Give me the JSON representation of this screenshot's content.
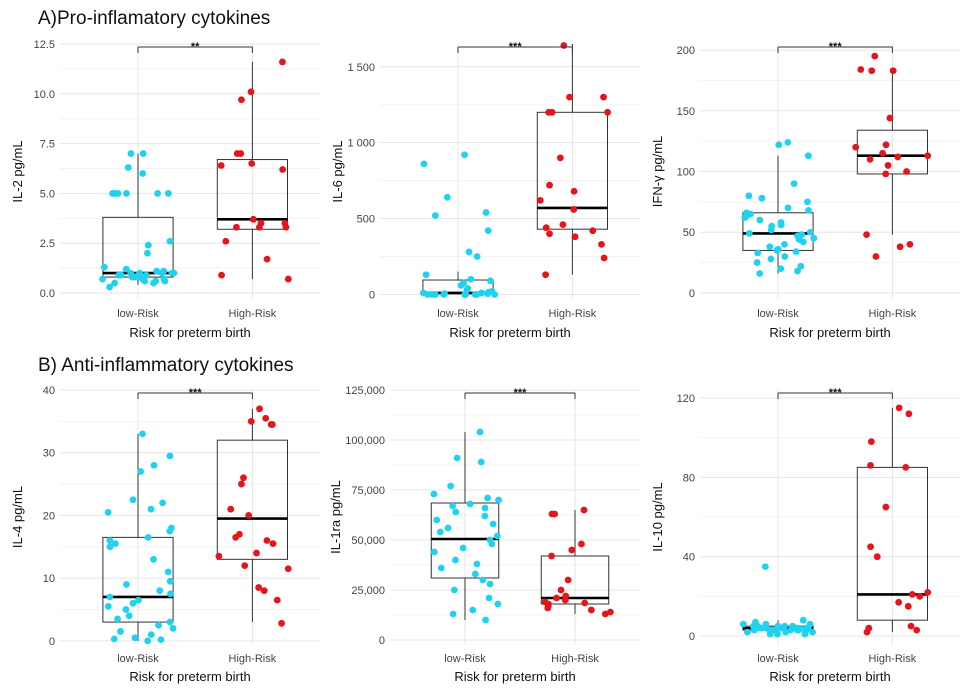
{
  "sections": {
    "a": "A)Pro-inflamatory cytokines",
    "b": "B) Anti-inflammatory cytokines"
  },
  "colors": {
    "low": "#1fd3f0",
    "high": "#e8141c",
    "grid": "#e6e6e6"
  },
  "chart_data": [
    {
      "type": "box",
      "ylabel": "IL-2 pg/mL",
      "xlabel": "Risk for preterm birth",
      "categories": [
        "low-Risk",
        "High-Risk"
      ],
      "ylim": [
        -0.3,
        12.5
      ],
      "yticks": [
        0,
        2.5,
        5,
        7.5,
        10,
        12.5
      ],
      "ytick_labels": [
        "0.0",
        "2.5",
        "5.0",
        "7.5",
        "10.0",
        "12.5"
      ],
      "significance": "**",
      "boxes": [
        {
          "q1": 0.8,
          "median": 1.0,
          "q3": 3.8,
          "whisker_low": 0.4,
          "whisker_high": 7.0
        },
        {
          "q1": 3.2,
          "median": 3.7,
          "q3": 6.7,
          "whisker_low": 0.7,
          "whisker_high": 11.6
        }
      ],
      "points": [
        [
          0.5,
          0.6,
          0.7,
          0.8,
          0.9,
          1.0,
          1.1,
          0.9,
          1.0,
          0.8,
          0.7,
          0.6,
          0.9,
          1.0,
          1.1,
          1.2,
          0.8,
          0.9,
          1.0,
          0.5,
          0.6,
          0.7,
          1.3,
          2.0,
          2.6,
          5.0,
          5.0,
          5.0,
          5.0,
          5.0,
          5.0,
          6.0,
          6.3,
          7.0,
          7.0,
          0.3,
          2.4,
          1.0,
          0.9
        ],
        [
          11.6,
          10.1,
          9.7,
          6.5,
          6.4,
          6.2,
          7.0,
          7.0,
          3.5,
          3.3,
          3.7,
          3.3,
          3.5,
          3.3,
          2.6,
          1.7,
          0.9,
          0.7
        ]
      ]
    },
    {
      "type": "box",
      "ylabel": "IL-6 pg/mL",
      "xlabel": "Risk for preterm birth",
      "categories": [
        "low-Risk",
        "High-Risk"
      ],
      "ylim": [
        -30,
        1650
      ],
      "yticks": [
        0,
        500,
        1000,
        1500
      ],
      "ytick_labels": [
        "0",
        "500",
        "1 000",
        "1 500"
      ],
      "significance": "***",
      "boxes": [
        {
          "q1": 5,
          "median": 10,
          "q3": 95,
          "whisker_low": 0,
          "whisker_high": 150
        },
        {
          "q1": 430,
          "median": 570,
          "q3": 1200,
          "whisker_low": 130,
          "whisker_high": 1650
        }
      ],
      "points": [
        [
          920,
          860,
          640,
          540,
          520,
          420,
          280,
          250,
          130,
          100,
          90,
          75,
          60,
          40,
          30,
          20,
          15,
          10,
          10,
          5,
          5,
          0,
          0,
          0,
          0,
          0,
          0,
          0,
          0,
          0,
          0
        ],
        [
          1640,
          1300,
          1300,
          1200,
          1200,
          1200,
          900,
          720,
          680,
          620,
          560,
          460,
          440,
          420,
          400,
          380,
          330,
          240,
          130
        ]
      ]
    },
    {
      "type": "box",
      "ylabel": "IFN-γ pg/mL",
      "xlabel": "Risk for preterm birth",
      "categories": [
        "low-Risk",
        "High-Risk"
      ],
      "ylim": [
        -5,
        205
      ],
      "yticks": [
        0,
        50,
        100,
        150,
        200
      ],
      "ytick_labels": [
        "0",
        "50",
        "100",
        "150",
        "200"
      ],
      "significance": "***",
      "boxes": [
        {
          "q1": 35,
          "median": 49,
          "q3": 66,
          "whisker_low": 16,
          "whisker_high": 113
        },
        {
          "q1": 98,
          "median": 113,
          "q3": 134,
          "whisker_low": 48,
          "whisker_high": 183
        }
      ],
      "points": [
        [
          124,
          122,
          113,
          90,
          80,
          78,
          75,
          70,
          68,
          66,
          65,
          63,
          62,
          60,
          58,
          56,
          55,
          52,
          50,
          49,
          48,
          47,
          45,
          44,
          42,
          40,
          38,
          36,
          35,
          34,
          33,
          30,
          28,
          25,
          22,
          20,
          18,
          16
        ],
        [
          195,
          184,
          183,
          183,
          144,
          122,
          120,
          115,
          113,
          112,
          110,
          105,
          100,
          98,
          48,
          40,
          38,
          30
        ]
      ]
    },
    {
      "type": "box",
      "ylabel": "IL-4 pg/mL",
      "xlabel": "Risk for preterm birth",
      "categories": [
        "low-Risk",
        "High-Risk"
      ],
      "ylim": [
        -0.5,
        40
      ],
      "yticks": [
        0,
        10,
        20,
        30,
        40
      ],
      "ytick_labels": [
        "0",
        "10",
        "20",
        "30",
        "40"
      ],
      "significance": "***",
      "boxes": [
        {
          "q1": 3.0,
          "median": 7.0,
          "q3": 16.5,
          "whisker_low": 0,
          "whisker_high": 33
        },
        {
          "q1": 13.0,
          "median": 19.5,
          "q3": 32.0,
          "whisker_low": 3.0,
          "whisker_high": 37
        }
      ],
      "points": [
        [
          33,
          29.5,
          28,
          27,
          22.5,
          22,
          21,
          20.5,
          18,
          17.5,
          16.5,
          16,
          15.5,
          15,
          13,
          11,
          9.5,
          9,
          8,
          7.5,
          7,
          6.5,
          6,
          5.5,
          5,
          4,
          3.5,
          3,
          2.5,
          2,
          1.5,
          1,
          0.5,
          0.3,
          0.2,
          0
        ],
        [
          37,
          35.5,
          35,
          34.5,
          34.5,
          26,
          25,
          21,
          20,
          17,
          16.5,
          16,
          15.5,
          14,
          13.5,
          12,
          11.5,
          8.5,
          8,
          6.5,
          2.8
        ]
      ]
    },
    {
      "type": "box",
      "ylabel": "IL-1ra pg/mL",
      "xlabel": "Risk for preterm birth",
      "categories": [
        "low-Risk",
        "High-Risk"
      ],
      "ylim": [
        -2000,
        125000
      ],
      "yticks": [
        0,
        25000,
        50000,
        75000,
        100000,
        125000
      ],
      "ytick_labels": [
        "0",
        "25,000",
        "50,000",
        "75,000",
        "100,000",
        "125,000"
      ],
      "significance": "***",
      "boxes": [
        {
          "q1": 31000,
          "median": 50500,
          "q3": 68500,
          "whisker_low": 10000,
          "whisker_high": 104000
        },
        {
          "q1": 18000,
          "median": 21000,
          "q3": 42000,
          "whisker_low": 13000,
          "whisker_high": 65000
        }
      ],
      "points": [
        [
          104000,
          91000,
          89000,
          77000,
          73000,
          71000,
          70000,
          68000,
          67000,
          66000,
          64000,
          62000,
          60000,
          58000,
          56000,
          54000,
          52000,
          50000,
          48000,
          46000,
          44000,
          40000,
          38000,
          36000,
          33000,
          30000,
          28000,
          25000,
          21000,
          18000,
          15000,
          13000,
          10000
        ],
        [
          65000,
          63000,
          63000,
          48000,
          45000,
          42000,
          30000,
          25000,
          22000,
          21000,
          20000,
          19000,
          18500,
          18000,
          17000,
          16000,
          15000,
          14000,
          13000
        ]
      ]
    },
    {
      "type": "box",
      "ylabel": "IL-10 pg/mL",
      "xlabel": "Risk for preterm birth",
      "categories": [
        "low-Risk",
        "High-Risk"
      ],
      "ylim": [
        -4,
        124
      ],
      "yticks": [
        0,
        40,
        80,
        120
      ],
      "ytick_labels": [
        "0",
        "40",
        "80",
        "120"
      ],
      "significance": "***",
      "boxes": [
        {
          "q1": 3,
          "median": 4,
          "q3": 5,
          "whisker_low": 1,
          "whisker_high": 8
        },
        {
          "q1": 8,
          "median": 21,
          "q3": 85,
          "whisker_low": 2,
          "whisker_high": 115
        }
      ],
      "points": [
        [
          35,
          8,
          7,
          6,
          6,
          5,
          5,
          5,
          5,
          4,
          4,
          4,
          4,
          4,
          4,
          3,
          3,
          3,
          3,
          3,
          3,
          2,
          2,
          2,
          2,
          1,
          1,
          1,
          6,
          5,
          4,
          3,
          2,
          4,
          3
        ],
        [
          115,
          112,
          98,
          86,
          85,
          65,
          45,
          40,
          22,
          21,
          20,
          17,
          15,
          5,
          4,
          3,
          2
        ]
      ]
    }
  ]
}
